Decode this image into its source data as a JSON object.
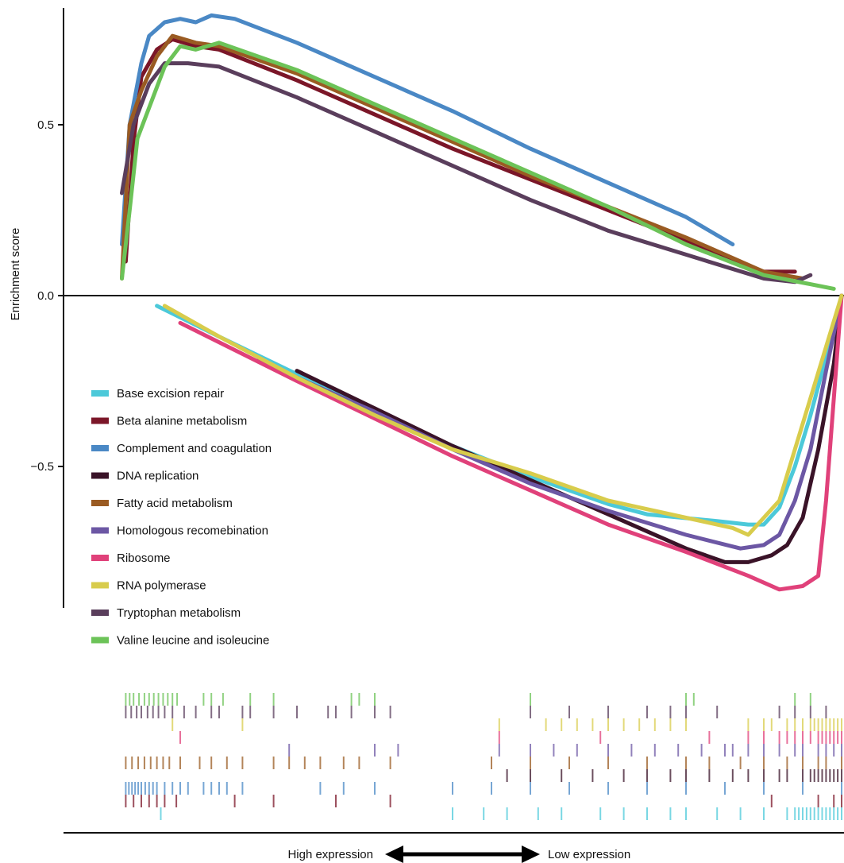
{
  "chart_data": {
    "type": "line",
    "title": "",
    "xlabel": "",
    "ylabel": "Enrichment score",
    "ylim": [
      -0.9,
      0.85
    ],
    "xlim": [
      0,
      1
    ],
    "yticks": [
      0.5,
      0.0,
      -0.5
    ],
    "ytick_labels": [
      "0.5",
      "0.0",
      "−0.5"
    ],
    "grid": false,
    "legend_position": "center-left",
    "series": [
      {
        "name": "Base excision repair",
        "color": "#4cc9d9",
        "x": [
          0.12,
          0.2,
          0.3,
          0.4,
          0.5,
          0.6,
          0.7,
          0.75,
          0.84,
          0.88,
          0.9,
          0.92,
          0.94,
          0.96,
          0.98,
          1.0
        ],
        "y": [
          -0.03,
          -0.12,
          -0.23,
          -0.34,
          -0.44,
          -0.53,
          -0.61,
          -0.64,
          -0.66,
          -0.67,
          -0.67,
          -0.62,
          -0.5,
          -0.35,
          -0.18,
          0.0
        ]
      },
      {
        "name": "Beta alanine metabolism",
        "color": "#7b1628",
        "x": [
          0.08,
          0.09,
          0.1,
          0.12,
          0.14,
          0.17,
          0.2,
          0.3,
          0.4,
          0.5,
          0.6,
          0.7,
          0.8,
          0.9,
          0.94
        ],
        "y": [
          0.1,
          0.45,
          0.64,
          0.72,
          0.75,
          0.73,
          0.72,
          0.63,
          0.53,
          0.43,
          0.34,
          0.25,
          0.16,
          0.07,
          0.07
        ]
      },
      {
        "name": "Complement and coagulation",
        "color": "#4a88c5",
        "x": [
          0.075,
          0.085,
          0.1,
          0.11,
          0.13,
          0.15,
          0.17,
          0.19,
          0.22,
          0.3,
          0.4,
          0.5,
          0.6,
          0.7,
          0.8,
          0.86
        ],
        "y": [
          0.15,
          0.5,
          0.68,
          0.76,
          0.8,
          0.81,
          0.8,
          0.82,
          0.81,
          0.74,
          0.64,
          0.54,
          0.43,
          0.33,
          0.23,
          0.15
        ]
      },
      {
        "name": "DNA replication",
        "color": "#3a1328",
        "x": [
          0.3,
          0.4,
          0.5,
          0.6,
          0.7,
          0.8,
          0.85,
          0.88,
          0.91,
          0.93,
          0.95,
          0.97,
          0.99,
          1.0
        ],
        "y": [
          -0.22,
          -0.33,
          -0.44,
          -0.54,
          -0.64,
          -0.74,
          -0.78,
          -0.78,
          -0.76,
          -0.73,
          -0.65,
          -0.45,
          -0.2,
          0.0
        ]
      },
      {
        "name": "Fatty acid metabolism",
        "color": "#9a5b22",
        "x": [
          0.075,
          0.085,
          0.1,
          0.12,
          0.14,
          0.17,
          0.2,
          0.3,
          0.4,
          0.5,
          0.6,
          0.7,
          0.8,
          0.9,
          0.95
        ],
        "y": [
          0.05,
          0.5,
          0.6,
          0.7,
          0.76,
          0.74,
          0.73,
          0.65,
          0.55,
          0.45,
          0.35,
          0.26,
          0.17,
          0.07,
          0.05
        ]
      },
      {
        "name": "Homologous recomebination",
        "color": "#6c57a4",
        "x": [
          0.25,
          0.4,
          0.5,
          0.6,
          0.7,
          0.8,
          0.87,
          0.9,
          0.92,
          0.94,
          0.96,
          0.98,
          1.0
        ],
        "y": [
          -0.19,
          -0.34,
          -0.45,
          -0.55,
          -0.63,
          -0.7,
          -0.74,
          -0.73,
          -0.7,
          -0.6,
          -0.45,
          -0.22,
          0.0
        ]
      },
      {
        "name": "Ribosome",
        "color": "#e0417a",
        "x": [
          0.15,
          0.3,
          0.4,
          0.5,
          0.6,
          0.7,
          0.8,
          0.88,
          0.9,
          0.92,
          0.95,
          0.97,
          0.98,
          0.99,
          1.0
        ],
        "y": [
          -0.08,
          -0.25,
          -0.36,
          -0.47,
          -0.57,
          -0.67,
          -0.75,
          -0.82,
          -0.84,
          -0.86,
          -0.85,
          -0.82,
          -0.6,
          -0.3,
          0.0
        ]
      },
      {
        "name": "RNA polymerase",
        "color": "#d8cc4c",
        "x": [
          0.13,
          0.2,
          0.3,
          0.4,
          0.5,
          0.6,
          0.7,
          0.8,
          0.86,
          0.88,
          0.9,
          0.92,
          0.94,
          0.96,
          0.98,
          1.0
        ],
        "y": [
          -0.03,
          -0.12,
          -0.24,
          -0.35,
          -0.45,
          -0.52,
          -0.6,
          -0.65,
          -0.68,
          -0.7,
          -0.65,
          -0.6,
          -0.45,
          -0.3,
          -0.15,
          0.0
        ]
      },
      {
        "name": "Tryptophan metabolism",
        "color": "#5a3e5c",
        "x": [
          0.075,
          0.09,
          0.11,
          0.13,
          0.16,
          0.2,
          0.3,
          0.4,
          0.5,
          0.6,
          0.7,
          0.8,
          0.9,
          0.94,
          0.96
        ],
        "y": [
          0.3,
          0.5,
          0.62,
          0.68,
          0.68,
          0.67,
          0.58,
          0.48,
          0.38,
          0.28,
          0.19,
          0.12,
          0.05,
          0.04,
          0.06
        ]
      },
      {
        "name": "Valine leucine and isoleucine",
        "color": "#6cc358",
        "x": [
          0.075,
          0.085,
          0.095,
          0.11,
          0.13,
          0.15,
          0.17,
          0.2,
          0.3,
          0.4,
          0.5,
          0.6,
          0.7,
          0.8,
          0.9,
          0.99
        ],
        "y": [
          0.05,
          0.25,
          0.46,
          0.55,
          0.67,
          0.73,
          0.72,
          0.74,
          0.66,
          0.56,
          0.46,
          0.36,
          0.26,
          0.15,
          0.06,
          0.02
        ]
      }
    ],
    "rug_rows": [
      {
        "name": "Valine leucine and isoleucine",
        "color": "#6cc358",
        "hits": [
          0.08,
          0.085,
          0.09,
          0.097,
          0.104,
          0.11,
          0.116,
          0.122,
          0.128,
          0.134,
          0.14,
          0.146,
          0.18,
          0.19,
          0.205,
          0.24,
          0.27,
          0.37,
          0.38,
          0.4,
          0.6,
          0.8,
          0.81,
          0.94,
          0.96
        ]
      },
      {
        "name": "Tryptophan metabolism",
        "color": "#5a3e5c",
        "hits": [
          0.08,
          0.087,
          0.094,
          0.1,
          0.108,
          0.115,
          0.122,
          0.13,
          0.14,
          0.155,
          0.17,
          0.19,
          0.2,
          0.23,
          0.24,
          0.27,
          0.3,
          0.34,
          0.35,
          0.37,
          0.4,
          0.42,
          0.6,
          0.65,
          0.7,
          0.75,
          0.78,
          0.8,
          0.84,
          0.92,
          0.94,
          0.96,
          0.98
        ]
      },
      {
        "name": "RNA polymerase",
        "color": "#d8cc4c",
        "hits": [
          0.14,
          0.23,
          0.56,
          0.62,
          0.64,
          0.66,
          0.68,
          0.7,
          0.72,
          0.74,
          0.76,
          0.78,
          0.8,
          0.88,
          0.9,
          0.91,
          0.93,
          0.94,
          0.95,
          0.96,
          0.965,
          0.97,
          0.975,
          0.98,
          0.985,
          0.99,
          0.995,
          1.0
        ]
      },
      {
        "name": "Ribosome",
        "color": "#e0417a",
        "hits": [
          0.15,
          0.56,
          0.69,
          0.83,
          0.88,
          0.9,
          0.92,
          0.93,
          0.94,
          0.95,
          0.96,
          0.97,
          0.975,
          0.98,
          0.985,
          0.99,
          0.995,
          1.0
        ]
      },
      {
        "name": "Homologous recomebination",
        "color": "#6c57a4",
        "hits": [
          0.29,
          0.4,
          0.43,
          0.56,
          0.6,
          0.63,
          0.66,
          0.7,
          0.73,
          0.76,
          0.79,
          0.82,
          0.85,
          0.86,
          0.88,
          0.9,
          0.92,
          0.94,
          0.95,
          0.97,
          0.98,
          0.99,
          1.0
        ]
      },
      {
        "name": "Fatty acid metabolism",
        "color": "#9a5b22",
        "hits": [
          0.08,
          0.088,
          0.096,
          0.104,
          0.112,
          0.12,
          0.128,
          0.136,
          0.15,
          0.175,
          0.19,
          0.21,
          0.23,
          0.27,
          0.29,
          0.31,
          0.33,
          0.36,
          0.38,
          0.42,
          0.55,
          0.6,
          0.65,
          0.7,
          0.75,
          0.8,
          0.83,
          0.87,
          0.9,
          0.93,
          0.95,
          0.97,
          0.98,
          1.0
        ]
      },
      {
        "name": "DNA replication",
        "color": "#3a1328",
        "hits": [
          0.57,
          0.6,
          0.64,
          0.68,
          0.72,
          0.75,
          0.78,
          0.8,
          0.83,
          0.86,
          0.88,
          0.9,
          0.92,
          0.93,
          0.95,
          0.96,
          0.965,
          0.97,
          0.975,
          0.98,
          0.985,
          0.99,
          0.995,
          1.0
        ]
      },
      {
        "name": "Complement and coagulation",
        "color": "#4a88c5",
        "hits": [
          0.08,
          0.084,
          0.088,
          0.092,
          0.096,
          0.1,
          0.105,
          0.11,
          0.115,
          0.12,
          0.13,
          0.14,
          0.15,
          0.16,
          0.18,
          0.19,
          0.2,
          0.21,
          0.23,
          0.33,
          0.36,
          0.4,
          0.5,
          0.55,
          0.6,
          0.65,
          0.7,
          0.75,
          0.8,
          0.85,
          0.9,
          0.95,
          1.0
        ]
      },
      {
        "name": "Beta alanine metabolism",
        "color": "#7b1628",
        "hits": [
          0.08,
          0.09,
          0.1,
          0.11,
          0.12,
          0.13,
          0.145,
          0.22,
          0.27,
          0.35,
          0.42,
          0.91,
          0.97,
          0.99,
          1.0
        ]
      },
      {
        "name": "Base excision repair",
        "color": "#4cc9d9",
        "hits": [
          0.125,
          0.5,
          0.54,
          0.57,
          0.61,
          0.64,
          0.69,
          0.72,
          0.75,
          0.78,
          0.8,
          0.84,
          0.87,
          0.9,
          0.93,
          0.94,
          0.945,
          0.95,
          0.955,
          0.96,
          0.965,
          0.97,
          0.975,
          0.98,
          0.985,
          0.99,
          0.995,
          1.0
        ]
      }
    ],
    "annotations": {
      "high_label": "High expression",
      "low_label": "Low expression"
    }
  }
}
